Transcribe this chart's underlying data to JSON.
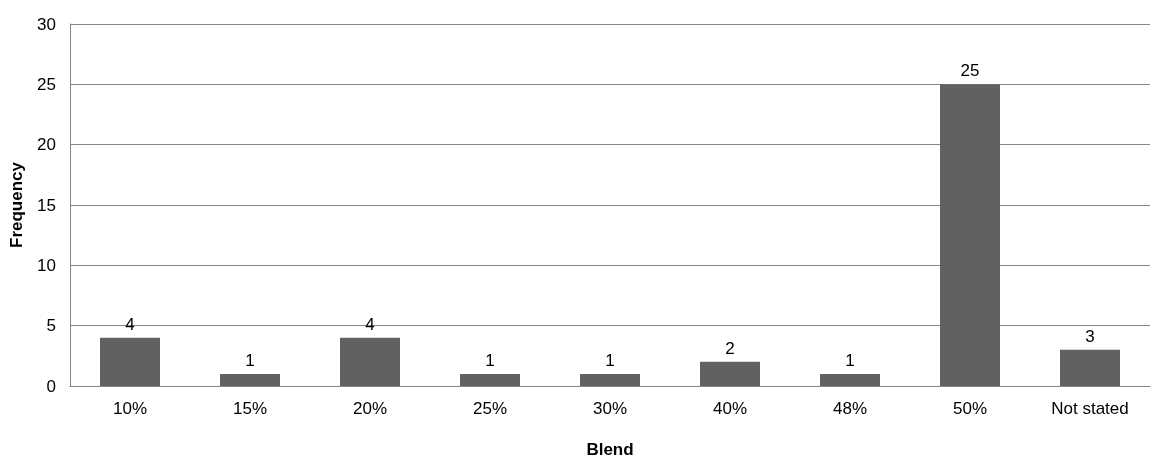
{
  "chart_data": {
    "type": "bar",
    "xlabel": "Blend",
    "ylabel": "Frequency",
    "categories": [
      "10%",
      "15%",
      "20%",
      "25%",
      "30%",
      "40%",
      "48%",
      "50%",
      "Not stated"
    ],
    "values": [
      4,
      1,
      4,
      1,
      1,
      2,
      1,
      25,
      3
    ],
    "color": "#616161",
    "ylim": [
      0,
      30
    ],
    "yticks": [
      0,
      5,
      10,
      15,
      20,
      25,
      30
    ],
    "grid": "y",
    "data_labels": true
  }
}
